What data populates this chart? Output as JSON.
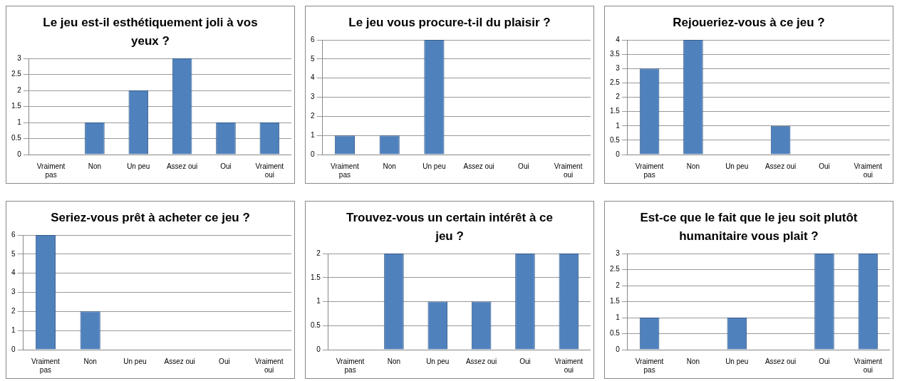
{
  "chart_data": [
    {
      "type": "bar",
      "title": "Le jeu est-il esthétiquement joli à vos yeux ?",
      "categories": [
        "Vraiment pas",
        "Non",
        "Un peu",
        "Assez oui",
        "Oui",
        "Vraiment oui"
      ],
      "values": [
        0,
        1,
        2,
        3,
        1,
        1
      ],
      "color": "#4f81bd",
      "ylim": [
        0,
        3
      ],
      "yticks": [
        0,
        0.5,
        1,
        1.5,
        2,
        2.5,
        3
      ],
      "grid": "y",
      "legend": false
    },
    {
      "type": "bar",
      "title": "Le jeu vous procure-t-il du plaisir ?",
      "categories": [
        "Vraiment pas",
        "Non",
        "Un peu",
        "Assez oui",
        "Oui",
        "Vraiment oui"
      ],
      "values": [
        1,
        1,
        6,
        0,
        0,
        0
      ],
      "color": "#4f81bd",
      "ylim": [
        0,
        6
      ],
      "yticks": [
        0,
        1,
        2,
        3,
        4,
        5,
        6
      ],
      "grid": "y",
      "legend": false
    },
    {
      "type": "bar",
      "title": "Rejoueriez-vous à ce jeu ?",
      "categories": [
        "Vraiment pas",
        "Non",
        "Un peu",
        "Assez oui",
        "Oui",
        "Vraiment oui"
      ],
      "values": [
        3,
        4,
        0,
        1,
        0,
        0
      ],
      "color": "#4f81bd",
      "ylim": [
        0,
        4
      ],
      "yticks": [
        0,
        0.5,
        1,
        1.5,
        2,
        2.5,
        3,
        3.5,
        4
      ],
      "grid": "y",
      "legend": false
    },
    {
      "type": "bar",
      "title": "Seriez-vous prêt à acheter ce jeu ?",
      "categories": [
        "Vraiment pas",
        "Non",
        "Un peu",
        "Assez oui",
        "Oui",
        "Vraiment oui"
      ],
      "values": [
        6,
        2,
        0,
        0,
        0,
        0
      ],
      "color": "#4f81bd",
      "ylim": [
        0,
        6
      ],
      "yticks": [
        0,
        1,
        2,
        3,
        4,
        5,
        6
      ],
      "grid": "y",
      "legend": false
    },
    {
      "type": "bar",
      "title": "Trouvez-vous un certain intérêt à ce jeu ?",
      "categories": [
        "Vraiment pas",
        "Non",
        "Un peu",
        "Assez oui",
        "Oui",
        "Vraiment oui"
      ],
      "values": [
        0,
        2,
        1,
        1,
        2,
        2
      ],
      "color": "#4f81bd",
      "ylim": [
        0,
        2
      ],
      "yticks": [
        0,
        0.5,
        1,
        1.5,
        2
      ],
      "grid": "y",
      "legend": false
    },
    {
      "type": "bar",
      "title": "Est-ce que le fait que le jeu soit plutôt humanitaire vous plait ?",
      "categories": [
        "Vraiment pas",
        "Non",
        "Un peu",
        "Assez oui",
        "Oui",
        "Vraiment oui"
      ],
      "values": [
        1,
        0,
        1,
        0,
        3,
        3
      ],
      "color": "#4f81bd",
      "ylim": [
        0,
        3
      ],
      "yticks": [
        0,
        0.5,
        1,
        1.5,
        2,
        2.5,
        3
      ],
      "grid": "y",
      "legend": false
    }
  ]
}
